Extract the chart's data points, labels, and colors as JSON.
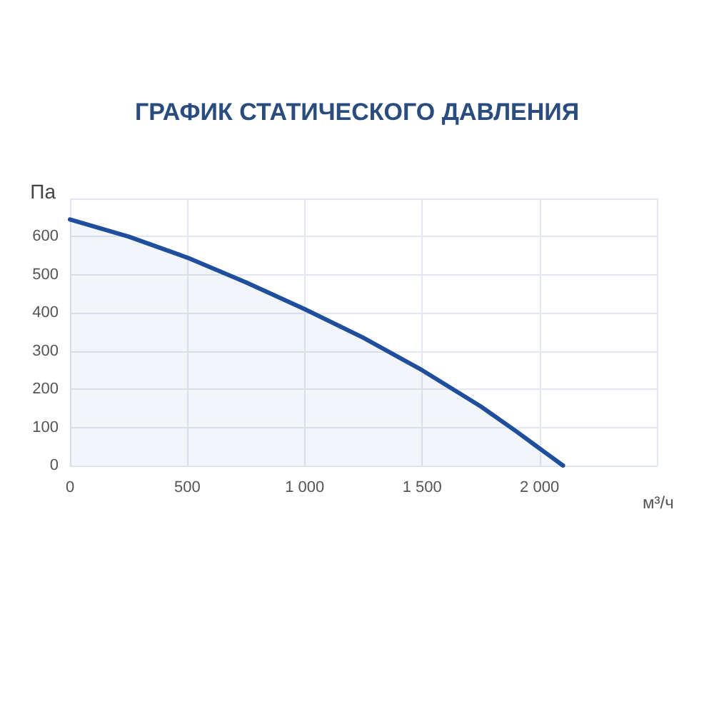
{
  "chart_data": {
    "type": "area",
    "title": "ГРАФИК СТАТИЧЕСКОГО ДАВЛЕНИЯ",
    "xlabel": "м³/ч",
    "ylabel": "Па",
    "x": [
      0,
      250,
      500,
      750,
      1000,
      1250,
      1500,
      1750,
      1900,
      2000,
      2100
    ],
    "series": [
      {
        "color": "#1f4e9c",
        "values": [
          645,
          600,
          545,
          480,
          410,
          335,
          250,
          155,
          90,
          45,
          0
        ]
      }
    ],
    "xlim": [
      0,
      2500
    ],
    "xticks": [
      0,
      500,
      {
        "value": 1000,
        "label": "1 000"
      },
      {
        "value": 1500,
        "label": "1 500"
      },
      {
        "value": 2000,
        "label": "2 000"
      },
      {
        "value": 2500,
        "label": null
      }
    ],
    "ylim": [
      0,
      700
    ],
    "yticks": [
      0,
      100,
      200,
      300,
      400,
      500,
      600,
      {
        "value": 700,
        "label": null
      }
    ],
    "grid": true,
    "marker": "none",
    "line_style": "solid"
  }
}
